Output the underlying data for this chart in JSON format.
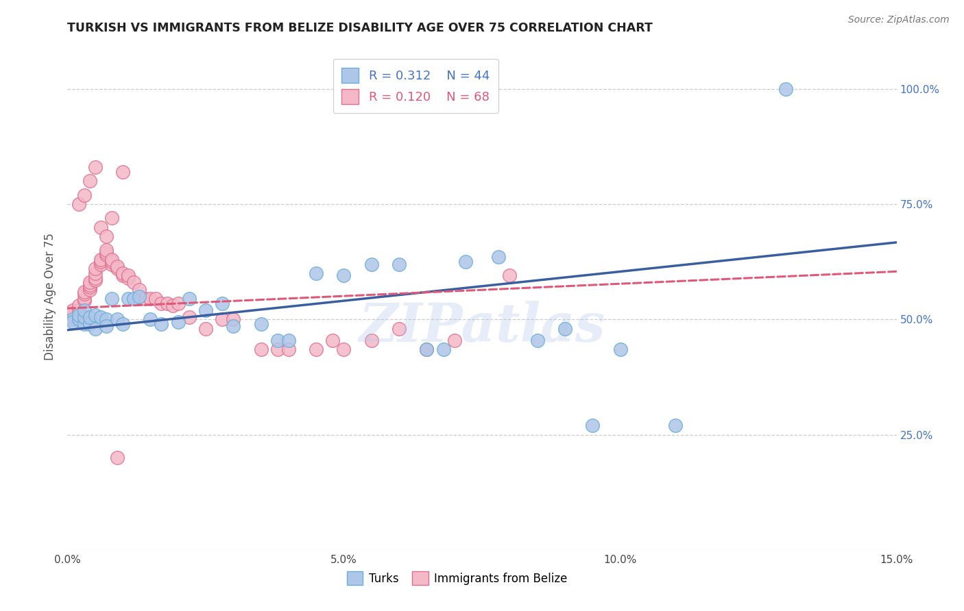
{
  "title": "TURKISH VS IMMIGRANTS FROM BELIZE DISABILITY AGE OVER 75 CORRELATION CHART",
  "source": "Source: ZipAtlas.com",
  "ylabel": "Disability Age Over 75",
  "background_color": "#ffffff",
  "grid_color": "#cccccc",
  "turks_color": "#aec6e8",
  "turks_edge_color": "#6aaed6",
  "belize_color": "#f4b8c8",
  "belize_edge_color": "#e07090",
  "trend_turks_color": "#3a5fa0",
  "trend_belize_color": "#e05878",
  "watermark": "ZIPatlas",
  "legend_R_turks": "0.312",
  "legend_N_turks": "44",
  "legend_R_belize": "0.120",
  "legend_N_belize": "68",
  "turks_x": [
    0.001,
    0.001,
    0.002,
    0.002,
    0.003,
    0.003,
    0.003,
    0.004,
    0.004,
    0.005,
    0.005,
    0.006,
    0.007,
    0.007,
    0.008,
    0.009,
    0.01,
    0.011,
    0.012,
    0.013,
    0.015,
    0.017,
    0.02,
    0.022,
    0.025,
    0.028,
    0.03,
    0.035,
    0.038,
    0.04,
    0.045,
    0.05,
    0.055,
    0.06,
    0.065,
    0.068,
    0.072,
    0.078,
    0.085,
    0.09,
    0.095,
    0.1,
    0.11,
    0.13
  ],
  "turks_y": [
    0.5,
    0.495,
    0.5,
    0.51,
    0.49,
    0.505,
    0.52,
    0.49,
    0.505,
    0.51,
    0.48,
    0.505,
    0.5,
    0.485,
    0.545,
    0.5,
    0.49,
    0.545,
    0.545,
    0.55,
    0.5,
    0.49,
    0.495,
    0.545,
    0.52,
    0.535,
    0.485,
    0.49,
    0.455,
    0.455,
    0.6,
    0.595,
    0.62,
    0.62,
    0.435,
    0.435,
    0.625,
    0.635,
    0.455,
    0.48,
    0.27,
    0.435,
    0.27,
    1.0
  ],
  "belize_x": [
    0.001,
    0.001,
    0.001,
    0.001,
    0.002,
    0.002,
    0.002,
    0.002,
    0.003,
    0.003,
    0.003,
    0.003,
    0.004,
    0.004,
    0.004,
    0.004,
    0.005,
    0.005,
    0.005,
    0.005,
    0.006,
    0.006,
    0.006,
    0.007,
    0.007,
    0.007,
    0.008,
    0.008,
    0.008,
    0.009,
    0.009,
    0.01,
    0.01,
    0.011,
    0.011,
    0.012,
    0.013,
    0.014,
    0.015,
    0.016,
    0.017,
    0.018,
    0.019,
    0.02,
    0.022,
    0.025,
    0.028,
    0.03,
    0.035,
    0.038,
    0.04,
    0.045,
    0.048,
    0.05,
    0.055,
    0.06,
    0.065,
    0.07,
    0.08,
    0.002,
    0.003,
    0.004,
    0.005,
    0.006,
    0.007,
    0.008,
    0.009,
    0.01
  ],
  "belize_y": [
    0.5,
    0.505,
    0.515,
    0.52,
    0.505,
    0.51,
    0.52,
    0.53,
    0.54,
    0.545,
    0.555,
    0.56,
    0.565,
    0.57,
    0.575,
    0.58,
    0.585,
    0.59,
    0.6,
    0.61,
    0.62,
    0.625,
    0.63,
    0.64,
    0.645,
    0.65,
    0.62,
    0.625,
    0.63,
    0.61,
    0.615,
    0.595,
    0.6,
    0.59,
    0.595,
    0.58,
    0.565,
    0.545,
    0.545,
    0.545,
    0.535,
    0.535,
    0.53,
    0.535,
    0.505,
    0.48,
    0.5,
    0.5,
    0.435,
    0.435,
    0.435,
    0.435,
    0.455,
    0.435,
    0.455,
    0.48,
    0.435,
    0.455,
    0.595,
    0.75,
    0.77,
    0.8,
    0.83,
    0.7,
    0.68,
    0.72,
    0.2,
    0.82
  ],
  "xlim": [
    0.0,
    0.15
  ],
  "ylim": [
    0.0,
    1.1
  ],
  "yticks": [
    0.25,
    0.5,
    0.75,
    1.0
  ],
  "xticks": [
    0.0,
    0.05,
    0.1,
    0.15
  ],
  "xtick_labels": [
    "0.0%",
    "5.0%",
    "10.0%",
    "15.0%"
  ],
  "right_ytick_labels": [
    "25.0%",
    "50.0%",
    "75.0%",
    "100.0%"
  ],
  "trend_turks_intercept": 0.477,
  "trend_turks_slope": 1.267,
  "trend_belize_intercept": 0.524,
  "trend_belize_slope": 0.533
}
